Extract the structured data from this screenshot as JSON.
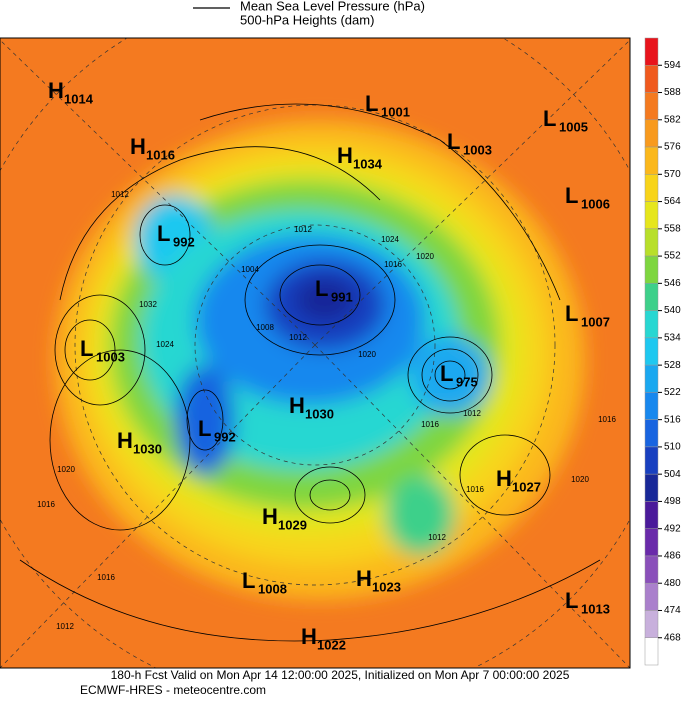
{
  "legend": [
    "Mean Sea Level Pressure (hPa)",
    "500-hPa Heights (dam)"
  ],
  "colorbar": {
    "ticks": [
      594,
      588,
      582,
      576,
      570,
      564,
      558,
      552,
      546,
      540,
      534,
      528,
      522,
      516,
      510,
      504,
      498,
      492,
      486,
      480,
      474,
      468
    ],
    "colors": [
      "#e8141c",
      "#f05a1e",
      "#f47a20",
      "#f89a1e",
      "#fbb81c",
      "#f8d41a",
      "#e6e61c",
      "#b8df2a",
      "#7ed640",
      "#3ed08a",
      "#28d7d2",
      "#1ec8f0",
      "#1aa8f0",
      "#1888ee",
      "#1864e0",
      "#1840c0",
      "#182898",
      "#4a1a9a",
      "#6a2aaa",
      "#8a50ba",
      "#aa80cc",
      "#c8b0dc",
      "#ffffff"
    ]
  },
  "centers": [
    {
      "kind": "H",
      "value": 1014
    },
    {
      "kind": "L",
      "value": 1001
    },
    {
      "kind": "L",
      "value": 1005
    },
    {
      "kind": "H",
      "value": 1016
    },
    {
      "kind": "L",
      "value": 1003
    },
    {
      "kind": "H",
      "value": 1034
    },
    {
      "kind": "L",
      "value": 1006
    },
    {
      "kind": "L",
      "value": 992
    },
    {
      "kind": "L",
      "value": 991
    },
    {
      "kind": "L",
      "value": 1007
    },
    {
      "kind": "L",
      "value": 1003
    },
    {
      "kind": "L",
      "value": 975
    },
    {
      "kind": "H",
      "value": 1030
    },
    {
      "kind": "L",
      "value": 992
    },
    {
      "kind": "H",
      "value": 1030
    },
    {
      "kind": "H",
      "value": 1027
    },
    {
      "kind": "H",
      "value": 1029
    },
    {
      "kind": "L",
      "value": 1008
    },
    {
      "kind": "H",
      "value": 1023
    },
    {
      "kind": "L",
      "value": 1013
    },
    {
      "kind": "H",
      "value": 1022
    }
  ],
  "contour_labels": [
    1012,
    1012,
    1024,
    1020,
    1016,
    1004,
    1008,
    1012,
    1020,
    1016,
    1012,
    1016,
    1012,
    1016,
    1020,
    1020,
    1016,
    1016,
    1012,
    1024,
    1032
  ],
  "footer": [
    "180-h Fcst Valid on Mon Apr 14 12:00:00 2025, Initialized on Mon Apr  7 00:00:00 2025",
    "ECMWF-HRES  - meteocentre.com"
  ]
}
